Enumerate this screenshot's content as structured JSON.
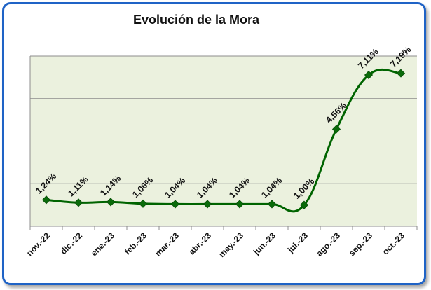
{
  "chart_data": {
    "type": "line",
    "title": "Evolución de la Mora",
    "categories": [
      "nov.-22",
      "dic.-22",
      "ene.-23",
      "feb.-23",
      "mar.-23",
      "abr.-23",
      "may.-23",
      "jun.-23",
      "jul.-23",
      "ago.-23",
      "sep.-23",
      "oct.-23"
    ],
    "series": [
      {
        "values": [
          1.24,
          1.11,
          1.14,
          1.06,
          1.04,
          1.04,
          1.04,
          1.04,
          1.0,
          4.56,
          7.11,
          7.19
        ],
        "labels": [
          "1,24%",
          "1,11%",
          "1,14%",
          "1,06%",
          "1,04%",
          "1,04%",
          "1,04%",
          "1,04%",
          "1,00%",
          "4,56%",
          "7,11%",
          "7,19%"
        ]
      }
    ],
    "xlabel": "",
    "ylabel": "",
    "ylim": [
      0,
      8
    ],
    "grid": true,
    "legend": "none",
    "colors": {
      "line": "#006400",
      "marker": "#0a6b0a",
      "plot_bg": "#ebf1de",
      "grid": "#8c8c8c",
      "border": "#1f63c6"
    }
  }
}
